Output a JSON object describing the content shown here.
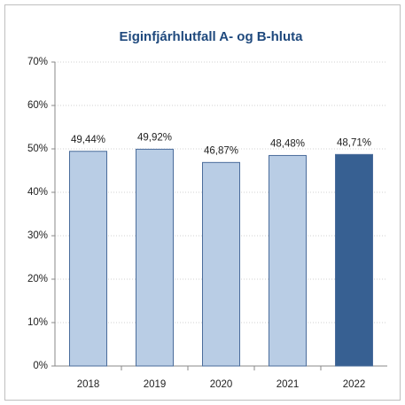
{
  "chart_data": {
    "type": "bar",
    "title": "Eiginfjárhlutfall  A- og B-hluta",
    "categories": [
      "2018",
      "2019",
      "2020",
      "2021",
      "2022"
    ],
    "values": [
      49.44,
      49.92,
      46.87,
      48.48,
      48.71
    ],
    "value_labels": [
      "49,44%",
      "49,92%",
      "46,87%",
      "48,48%",
      "48,71%"
    ],
    "colors": [
      "#b9cde5",
      "#b9cde5",
      "#b9cde5",
      "#b9cde5",
      "#376092"
    ],
    "ylim": [
      0,
      70
    ],
    "yticks": [
      {
        "value": 0,
        "label": "0%"
      },
      {
        "value": 10,
        "label": "10%"
      },
      {
        "value": 20,
        "label": "20%"
      },
      {
        "value": 30,
        "label": "30%"
      },
      {
        "value": 40,
        "label": "40%"
      },
      {
        "value": 50,
        "label": "50%"
      },
      {
        "value": 60,
        "label": "60%"
      },
      {
        "value": 70,
        "label": "70%"
      }
    ],
    "grid": true
  }
}
